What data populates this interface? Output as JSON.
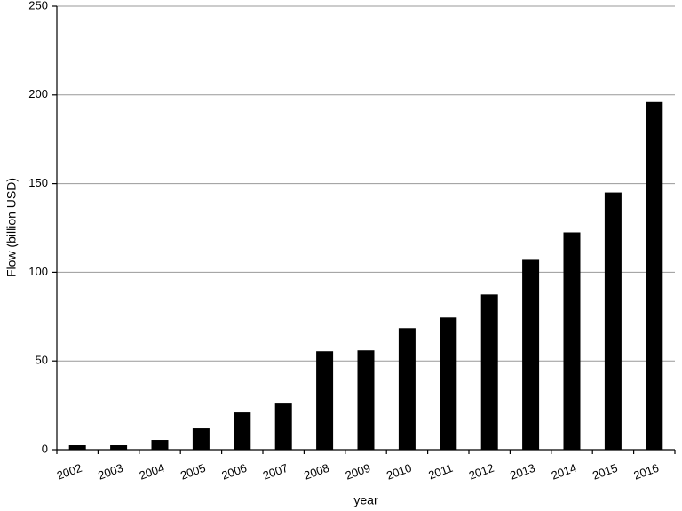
{
  "chart_data": {
    "type": "bar",
    "x_label": "year",
    "y_label": "Flow (billion USD)",
    "categories": [
      "2002",
      "2003",
      "2004",
      "2005",
      "2006",
      "2007",
      "2008",
      "2009",
      "2010",
      "2011",
      "2012",
      "2013",
      "2014",
      "2015",
      "2016"
    ],
    "values": [
      2.5,
      2.5,
      5.5,
      12,
      21,
      26,
      55.5,
      56,
      68.5,
      74.5,
      87.5,
      107,
      122.5,
      145,
      196
    ],
    "color": "#000000",
    "ylim": [
      0,
      250
    ],
    "yticks": [
      0,
      50,
      100,
      150,
      200,
      250
    ],
    "grid": true
  }
}
